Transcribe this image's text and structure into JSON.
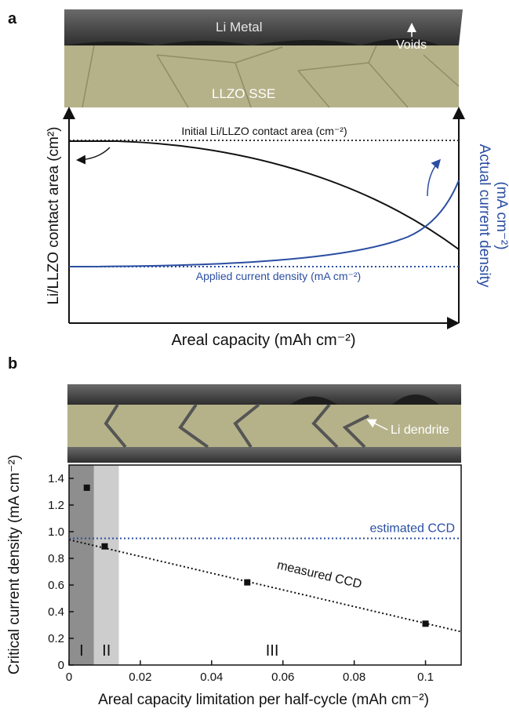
{
  "panel_a": {
    "label": "a",
    "metal": "Li Metal",
    "voids": "Voids",
    "electrolyte": "LLZO SSE",
    "ylabel": "Li/LLZO contact area (cm²)",
    "y2label_1": "Actual current density",
    "y2label_2": "(mA cm⁻²)",
    "xlabel": "Areal capacity (mAh cm⁻²)",
    "initial_label": "Initial Li/LLZO contact area (cm⁻²)",
    "applied_label": "Applied current density (mA cm⁻²)"
  },
  "panel_b": {
    "label": "b",
    "dendrite": "Li dendrite"
  },
  "chart_data": {
    "type": "scatter",
    "ylabel": "Critical current density (mA cm⁻²)",
    "xlabel": "Areal capacity limitation per half-cycle (mAh cm⁻²)",
    "x": [
      0.005,
      0.01,
      0.05,
      0.1
    ],
    "values": [
      1.33,
      0.89,
      0.62,
      0.31
    ],
    "color": "#111111",
    "xlim": [
      0,
      0.11
    ],
    "ylim": [
      0,
      1.5
    ],
    "xticks": [
      0,
      0.02,
      0.04,
      0.06,
      0.08,
      0.1
    ],
    "yticks": [
      0,
      0.2,
      0.4,
      0.6,
      0.8,
      {
        "value": 1,
        "label": "1.0"
      },
      1.2,
      1.4
    ],
    "estimated_ccd": {
      "label": "estimated CCD",
      "value": 0.95,
      "color": "#2b4ea2"
    },
    "fit": {
      "label": "measured CCD",
      "x": [
        0,
        0.11
      ],
      "values": [
        0.94,
        0.25
      ]
    },
    "regions": [
      {
        "label": "I",
        "x": [
          0,
          0.007
        ],
        "color": "#8e8e8e"
      },
      {
        "label": "II",
        "x": [
          0.007,
          0.014
        ],
        "color": "#cdcdcd"
      },
      {
        "label": "III",
        "x": [
          0.014,
          0.1
        ],
        "color": "#ffffff"
      }
    ]
  }
}
